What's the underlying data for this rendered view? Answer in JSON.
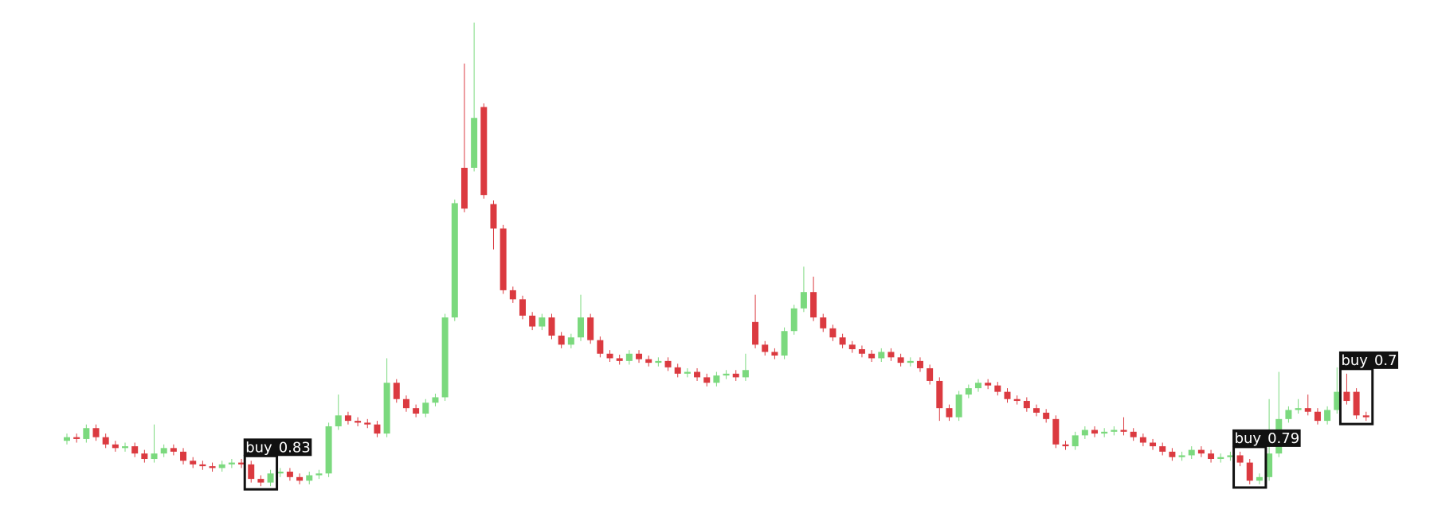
{
  "chart_data": {
    "type": "candlestick",
    "up_color": "#7bd97e",
    "down_color": "#db3a40",
    "ylim": [
      0,
      570
    ],
    "open": [
      84,
      88,
      86,
      98,
      88,
      80,
      76,
      78,
      70,
      64,
      70,
      76,
      72,
      62,
      58,
      56,
      54,
      58,
      60,
      58,
      42,
      38,
      48,
      50,
      44,
      40,
      46,
      48,
      100,
      112,
      106,
      104,
      102,
      92,
      148,
      130,
      120,
      114,
      126,
      132,
      220,
      385,
      385,
      452,
      345,
      318,
      250,
      240,
      222,
      210,
      220,
      200,
      190,
      198,
      220,
      195,
      180,
      175,
      172,
      180,
      174,
      170,
      172,
      165,
      158,
      160,
      154,
      148,
      156,
      158,
      154,
      215,
      190,
      182,
      178,
      205,
      230,
      248,
      220,
      208,
      198,
      190,
      185,
      180,
      175,
      182,
      176,
      170,
      172,
      164,
      150,
      120,
      110,
      135,
      142,
      148,
      145,
      138,
      130,
      128,
      120,
      115,
      108,
      80,
      78,
      90,
      96,
      92,
      94,
      96,
      94,
      88,
      82,
      78,
      72,
      66,
      68,
      74,
      70,
      64,
      66,
      68,
      60,
      40,
      44,
      70,
      108,
      118,
      120,
      116,
      106,
      118,
      138,
      138,
      112
    ],
    "high": [
      92,
      92,
      102,
      102,
      92,
      84,
      82,
      82,
      74,
      102,
      80,
      80,
      76,
      66,
      62,
      60,
      62,
      64,
      64,
      62,
      46,
      52,
      54,
      54,
      48,
      50,
      52,
      104,
      135,
      116,
      110,
      108,
      106,
      175,
      152,
      134,
      124,
      130,
      136,
      224,
      350,
      500,
      545,
      456,
      349,
      322,
      254,
      244,
      226,
      224,
      224,
      204,
      202,
      245,
      224,
      199,
      184,
      179,
      184,
      184,
      178,
      176,
      176,
      169,
      164,
      164,
      158,
      160,
      162,
      162,
      180,
      245,
      194,
      186,
      209,
      234,
      276,
      265,
      224,
      212,
      202,
      194,
      189,
      184,
      186,
      186,
      180,
      176,
      176,
      168,
      154,
      124,
      139,
      146,
      152,
      152,
      149,
      142,
      134,
      132,
      124,
      119,
      112,
      84,
      94,
      100,
      100,
      98,
      100,
      110,
      98,
      92,
      86,
      82,
      76,
      72,
      78,
      78,
      74,
      70,
      72,
      72,
      64,
      48,
      130,
      160,
      122,
      130,
      135,
      120,
      122,
      165,
      158,
      142,
      116
    ],
    "low": [
      80,
      82,
      82,
      84,
      76,
      72,
      72,
      66,
      60,
      60,
      66,
      68,
      58,
      54,
      52,
      50,
      50,
      54,
      54,
      38,
      34,
      34,
      44,
      40,
      36,
      36,
      42,
      44,
      96,
      102,
      100,
      98,
      88,
      88,
      126,
      116,
      110,
      110,
      122,
      128,
      216,
      336,
      381,
      351,
      295,
      246,
      236,
      218,
      206,
      206,
      196,
      186,
      186,
      194,
      191,
      176,
      171,
      168,
      168,
      170,
      166,
      166,
      161,
      154,
      154,
      150,
      144,
      144,
      152,
      150,
      150,
      186,
      178,
      174,
      174,
      201,
      226,
      216,
      204,
      194,
      186,
      181,
      176,
      171,
      171,
      172,
      166,
      166,
      160,
      146,
      106,
      106,
      106,
      131,
      138,
      141,
      134,
      126,
      124,
      116,
      111,
      104,
      76,
      74,
      74,
      86,
      88,
      88,
      90,
      90,
      84,
      78,
      74,
      68,
      62,
      62,
      64,
      66,
      60,
      60,
      62,
      56,
      36,
      36,
      40,
      66,
      104,
      114,
      112,
      102,
      102,
      114,
      124,
      108,
      106
    ],
    "close": [
      88,
      86,
      98,
      88,
      80,
      76,
      78,
      70,
      64,
      70,
      76,
      72,
      62,
      58,
      56,
      54,
      58,
      60,
      58,
      42,
      38,
      48,
      50,
      44,
      40,
      46,
      48,
      100,
      112,
      106,
      104,
      102,
      92,
      148,
      130,
      120,
      114,
      126,
      132,
      220,
      346,
      340,
      440,
      355,
      318,
      250,
      240,
      222,
      210,
      220,
      200,
      190,
      198,
      220,
      195,
      180,
      175,
      172,
      180,
      174,
      170,
      172,
      165,
      158,
      160,
      154,
      148,
      156,
      158,
      154,
      162,
      190,
      182,
      178,
      205,
      230,
      248,
      220,
      208,
      198,
      190,
      185,
      180,
      175,
      182,
      176,
      170,
      172,
      164,
      150,
      120,
      110,
      135,
      142,
      148,
      145,
      138,
      130,
      128,
      120,
      115,
      108,
      80,
      78,
      90,
      96,
      92,
      94,
      96,
      94,
      88,
      82,
      78,
      72,
      66,
      68,
      74,
      70,
      64,
      66,
      68,
      60,
      40,
      44,
      70,
      108,
      118,
      120,
      116,
      106,
      118,
      138,
      128,
      112,
      110
    ],
    "annotations": [
      {
        "label": "buy",
        "score": 0.83
      },
      {
        "label": "buy",
        "score": 0.79
      },
      {
        "label": "buy",
        "score": 0.7
      }
    ]
  }
}
